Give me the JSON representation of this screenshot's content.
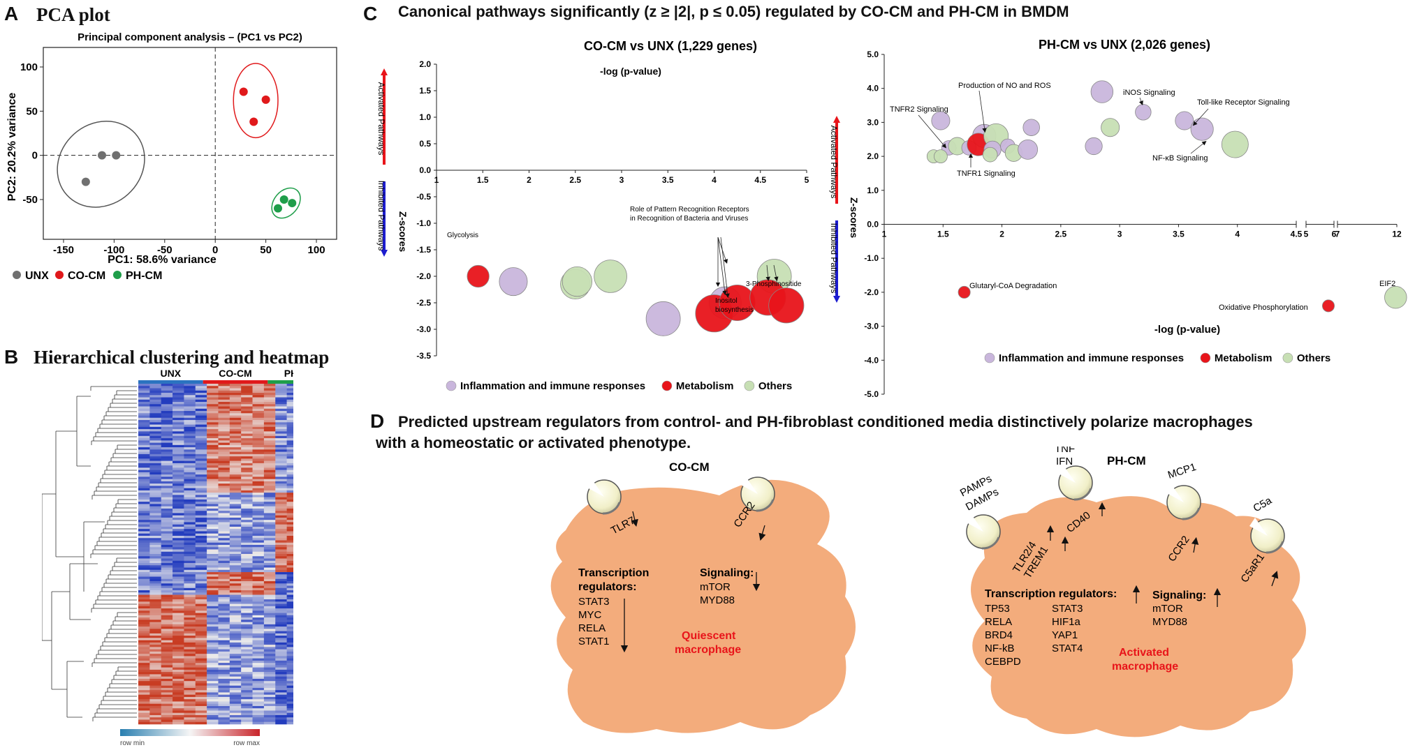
{
  "panels": {
    "a": {
      "letter": "A",
      "title": "PCA plot"
    },
    "b": {
      "letter": "B",
      "title": "Hierarchical clustering and heatmap"
    },
    "c": {
      "letter": "C",
      "title": "Canonical pathways significantly (z ≥ |2|, p ≤ 0.05) regulated by CO-CM and PH-CM in BMDM"
    },
    "d": {
      "letter": "D",
      "title_line1": "Predicted upstream regulators from control- and PH-fibroblast conditioned media distinctively polarize macrophages",
      "title_line2": "with a homeostatic or activated phenotype."
    }
  },
  "chart_data": [
    {
      "type": "scatter",
      "title": "Principal component analysis – (PC1 vs PC2)",
      "xlabel": "PC1: 58.6% variance",
      "ylabel": "PC2: 20.2% variance",
      "xlim": [
        -170,
        120
      ],
      "ylim": [
        -95,
        130
      ],
      "xticks": [
        "-150",
        "-100",
        "-50",
        "0",
        "50",
        "100"
      ],
      "xtick_values": [
        -150,
        -100,
        -50,
        0,
        50,
        100
      ],
      "yticks": [
        "100",
        "50",
        "0",
        "-50"
      ],
      "ytick_values": [
        100,
        50,
        0,
        -50
      ],
      "series": [
        {
          "name": "UNX",
          "color": "#707070",
          "points": [
            [
              -128,
              -30
            ],
            [
              -112,
              0
            ],
            [
              -98,
              0
            ]
          ]
        },
        {
          "name": "CO-CM",
          "color": "#e0191b",
          "points": [
            [
              28,
              72
            ],
            [
              50,
              63
            ],
            [
              38,
              38
            ]
          ]
        },
        {
          "name": "PH-CM",
          "color": "#1f9e4a",
          "points": [
            [
              68,
              -50
            ],
            [
              76,
              -54
            ],
            [
              62,
              -60
            ]
          ]
        }
      ],
      "legend": [
        "UNX",
        "CO-CM",
        "PH-CM"
      ]
    },
    {
      "type": "heatmap",
      "groups": [
        "UNX",
        "CO-CM",
        "PH-CM"
      ],
      "group_colors": [
        "#2b73c0",
        "#e0191b",
        "#1f9e4a"
      ],
      "colorbar_min_label": "row min",
      "colorbar_max_label": "row max"
    },
    {
      "type": "bubble",
      "title": "CO-CM vs UNX  (1,229 genes)",
      "xlabel": "-log (p-value)",
      "ylabel": "Z-scores",
      "activated_label": "Activated Pathways",
      "inhibited_label": "Inhibited Pathways",
      "xlim": [
        1,
        5
      ],
      "ylim": [
        -3.5,
        2
      ],
      "xticks": [
        "1",
        "1.5",
        "2",
        "2.5",
        "3",
        "3.5",
        "4",
        "4.5",
        "5"
      ],
      "xtick_values": [
        1,
        1.5,
        2,
        2.5,
        3,
        3.5,
        4,
        4.5,
        5
      ],
      "yticks": [
        "2.0",
        "1.5",
        "1.0",
        "0.5",
        "0.0",
        "-0.5",
        "-1.0",
        "-1.5",
        "-2.0",
        "-2.5",
        "-3.0",
        "-3.5"
      ],
      "ytick_values": [
        2,
        1.5,
        1,
        0.5,
        0,
        -0.5,
        -1,
        -1.5,
        -2,
        -2.5,
        -3,
        -3.5
      ],
      "points": [
        {
          "x": 1.45,
          "y": -2.0,
          "size": 0.35,
          "cat": "Metabolism"
        },
        {
          "x": 1.83,
          "y": -2.1,
          "size": 0.55,
          "cat": "Inflammation"
        },
        {
          "x": 2.5,
          "y": -2.15,
          "size": 0.6,
          "cat": "Others"
        },
        {
          "x": 2.52,
          "y": -2.1,
          "size": 0.6,
          "cat": "Others"
        },
        {
          "x": 2.88,
          "y": -2.0,
          "size": 0.7,
          "cat": "Others"
        },
        {
          "x": 3.45,
          "y": -2.8,
          "size": 0.75,
          "cat": "Inflammation"
        },
        {
          "x": 4.12,
          "y": -2.5,
          "size": 0.68,
          "cat": "Inflammation"
        },
        {
          "x": 4.0,
          "y": -2.7,
          "size": 0.85,
          "cat": "Metabolism"
        },
        {
          "x": 4.25,
          "y": -2.5,
          "size": 0.8,
          "cat": "Metabolism"
        },
        {
          "x": 4.65,
          "y": -2.0,
          "size": 0.75,
          "cat": "Others"
        },
        {
          "x": 4.58,
          "y": -2.4,
          "size": 0.8,
          "cat": "Metabolism"
        },
        {
          "x": 4.78,
          "y": -2.55,
          "size": 0.78,
          "cat": "Metabolism"
        }
      ],
      "annotations": [
        "Glycolysis",
        "Role of Pattern Recognition Receptors",
        "in Recognition of Bacteria and Viruses",
        "Inositol",
        "biosynthesis",
        "3-Phosphinositide"
      ],
      "legend": [
        "Inflammation and immune responses",
        "Metabolism",
        "Others"
      ]
    },
    {
      "type": "bubble",
      "title": "PH-CM vs UNX  (2,026 genes)",
      "xlabel": "-log (p-value)",
      "ylabel": "Z-scores",
      "activated_label": "Activated Pathways",
      "inhibited_label": "Inhibited Pathways",
      "xlim": [
        1,
        12
      ],
      "ylim": [
        -5,
        5
      ],
      "xticks": [
        "1",
        "1.5",
        "2",
        "2.5",
        "3",
        "3.5",
        "4",
        "4.5",
        "5",
        "6",
        "7",
        "12"
      ],
      "xtick_values": [
        1,
        1.5,
        2,
        2.5,
        3,
        3.5,
        4,
        4.5,
        5,
        6,
        7,
        12
      ],
      "yticks": [
        "5.0",
        "4.0",
        "3.0",
        "2.0",
        "1.0",
        "0.0",
        "-1.0",
        "-2.0",
        "-3.0",
        "-4.0",
        "-5.0"
      ],
      "ytick_values": [
        5,
        4,
        3,
        2,
        1,
        0,
        -1,
        -2,
        -3,
        -4,
        -5
      ],
      "points": [
        {
          "x": 1.48,
          "y": 3.05,
          "size": 0.45,
          "cat": "Inflammation"
        },
        {
          "x": 1.55,
          "y": 2.25,
          "size": 0.3,
          "cat": "Inflammation"
        },
        {
          "x": 1.42,
          "y": 2.0,
          "size": 0.25,
          "cat": "Others"
        },
        {
          "x": 1.48,
          "y": 2.0,
          "size": 0.25,
          "cat": "Others"
        },
        {
          "x": 1.62,
          "y": 2.3,
          "size": 0.42,
          "cat": "Others"
        },
        {
          "x": 1.72,
          "y": 2.25,
          "size": 0.3,
          "cat": "Inflammation"
        },
        {
          "x": 1.85,
          "y": 2.6,
          "size": 0.65,
          "cat": "Inflammation"
        },
        {
          "x": 1.8,
          "y": 2.35,
          "size": 0.62,
          "cat": "Metabolism"
        },
        {
          "x": 1.95,
          "y": 2.6,
          "size": 0.7,
          "cat": "Others"
        },
        {
          "x": 1.92,
          "y": 2.2,
          "size": 0.4,
          "cat": "Inflammation"
        },
        {
          "x": 1.9,
          "y": 2.05,
          "size": 0.3,
          "cat": "Others"
        },
        {
          "x": 2.05,
          "y": 2.3,
          "size": 0.3,
          "cat": "Inflammation"
        },
        {
          "x": 2.1,
          "y": 2.1,
          "size": 0.4,
          "cat": "Others"
        },
        {
          "x": 2.25,
          "y": 2.85,
          "size": 0.38,
          "cat": "Inflammation"
        },
        {
          "x": 2.22,
          "y": 2.2,
          "size": 0.5,
          "cat": "Inflammation"
        },
        {
          "x": 2.78,
          "y": 2.3,
          "size": 0.4,
          "cat": "Inflammation"
        },
        {
          "x": 2.85,
          "y": 3.9,
          "size": 0.6,
          "cat": "Inflammation"
        },
        {
          "x": 2.92,
          "y": 2.85,
          "size": 0.45,
          "cat": "Others"
        },
        {
          "x": 3.2,
          "y": 3.3,
          "size": 0.35,
          "cat": "Inflammation"
        },
        {
          "x": 3.55,
          "y": 3.05,
          "size": 0.45,
          "cat": "Inflammation"
        },
        {
          "x": 3.7,
          "y": 2.8,
          "size": 0.62,
          "cat": "Inflammation"
        },
        {
          "x": 3.98,
          "y": 2.35,
          "size": 0.78,
          "cat": "Others"
        },
        {
          "x": 1.68,
          "y": -2.0,
          "size": 0.2,
          "cat": "Metabolism"
        },
        {
          "x": 5.8,
          "y": -2.4,
          "size": 0.2,
          "cat": "Metabolism"
        },
        {
          "x": 11.9,
          "y": -2.15,
          "size": 0.6,
          "cat": "Others"
        }
      ],
      "annotations": [
        "TNFR2 Signaling",
        "Production of NO and ROS",
        "iNOS Signaling",
        "Toll-like Receptor Signaling",
        "NF-κB Signaling",
        "TNFR1 Signaling",
        "Glutaryl-CoA Degradation",
        "Oxidative Phosphorylation",
        "EIF2"
      ],
      "legend": [
        "Inflammation and immune responses",
        "Metabolism",
        "Others"
      ]
    }
  ],
  "diagram": {
    "co_cm": {
      "title": "CO-CM",
      "receptors": [
        "TLR7",
        "CCR2"
      ],
      "tr_label_1": "Transcription",
      "tr_label_2": "regulators:",
      "tr_items": [
        "STAT3",
        "MYC",
        "RELA",
        "STAT1"
      ],
      "sig_label": "Signaling:",
      "sig_items": [
        "mTOR",
        "MYD88"
      ],
      "state_1": "Quiescent",
      "state_2": "macrophage"
    },
    "ph_cm": {
      "title": "PH-CM",
      "ligands": [
        "PAMPs",
        "DAMPs",
        "TNF",
        "IFN",
        "MCP1",
        "C5a"
      ],
      "receptors": [
        "TLR2/4",
        "TREM1",
        "CD40",
        "CCR2",
        "C5aR1"
      ],
      "tr_label": "Transcription regulators:",
      "tr_col1": [
        "TP53",
        "RELA",
        "BRD4",
        "NF-kB",
        "CEBPD"
      ],
      "tr_col2": [
        "STAT3",
        "HIF1a",
        "YAP1",
        "STAT4"
      ],
      "sig_label": "Signaling:",
      "sig_items": [
        "mTOR",
        "MYD88"
      ],
      "state_1": "Activated",
      "state_2": "macrophage"
    }
  },
  "colors": {
    "inflammation": "#c9b6dc",
    "metabolism": "#e8141a",
    "others": "#c7dfb4",
    "cell": "#f3ac7c",
    "red_arrow": "#e8141a",
    "blue_arrow": "#1c1ccf"
  }
}
